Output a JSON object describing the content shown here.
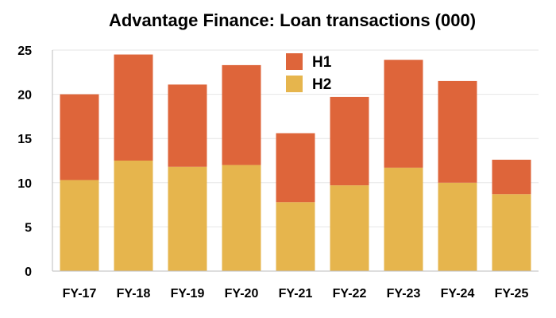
{
  "chart_data": {
    "type": "bar",
    "stacked": true,
    "title": "Advantage Finance: Loan transactions (000)",
    "xlabel": "",
    "ylabel": "",
    "categories": [
      "FY-17",
      "FY-18",
      "FY-19",
      "FY-20",
      "FY-21",
      "FY-22",
      "FY-23",
      "FY-24",
      "FY-25"
    ],
    "series": [
      {
        "name": "H2",
        "color": "#e6b54d",
        "values": [
          10.3,
          12.5,
          11.8,
          12.0,
          7.8,
          9.7,
          11.7,
          10.0,
          8.7
        ]
      },
      {
        "name": "H1",
        "color": "#de653a",
        "values": [
          9.7,
          12.0,
          9.3,
          11.3,
          7.8,
          10.0,
          12.2,
          11.5,
          3.9
        ]
      }
    ],
    "ylim": [
      0,
      25
    ],
    "yticks": [
      "0",
      "5",
      "10",
      "15",
      "20",
      "25"
    ],
    "legend": {
      "position": "top-center",
      "order": [
        "H1",
        "H2"
      ]
    },
    "grid": true
  }
}
